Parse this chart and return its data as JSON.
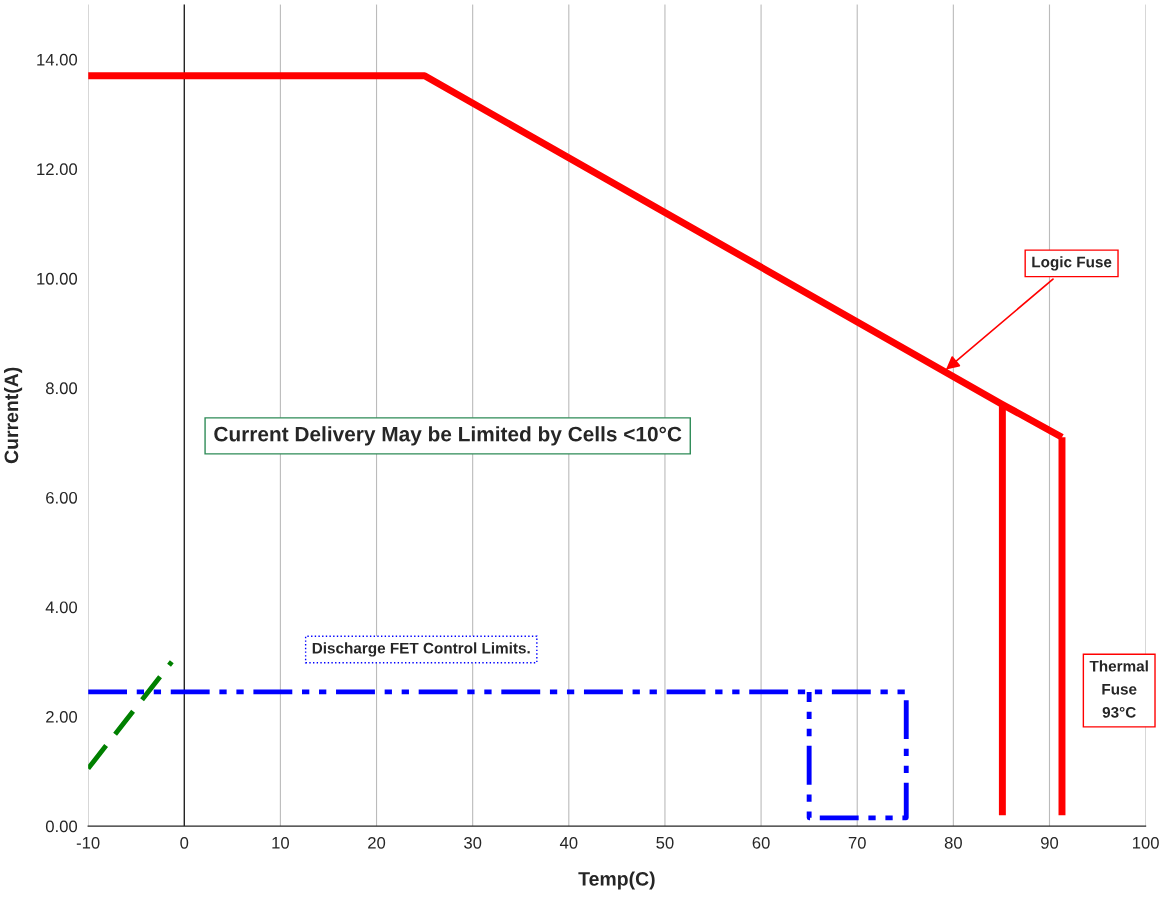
{
  "chart_data": {
    "type": "line",
    "xlabel": "Temp(C)",
    "ylabel": "Current(A)",
    "xlim": [
      -10,
      100
    ],
    "ylim": [
      0,
      15
    ],
    "xticks": [
      -10,
      0,
      10,
      20,
      30,
      40,
      50,
      60,
      70,
      80,
      90,
      100
    ],
    "yticks": [
      {
        "value": 0,
        "label": "0.00"
      },
      {
        "value": 2,
        "label": "2.00"
      },
      {
        "value": 4,
        "label": "4.00"
      },
      {
        "value": 6,
        "label": "6.00"
      },
      {
        "value": 8,
        "label": "8.00"
      },
      {
        "value": 10,
        "label": "10.00"
      },
      {
        "value": 12,
        "label": "12.00"
      },
      {
        "value": 14,
        "label": "14.00"
      }
    ],
    "grid": "x",
    "marker": "none",
    "series": [
      {
        "color": "#ff0000",
        "x": [
          -10,
          25,
          85.1,
          91.3
        ],
        "values": [
          13.7,
          13.7,
          7.7,
          7.1
        ],
        "line_style": "solid"
      },
      {
        "color": "#ff0000",
        "x": [
          85.1,
          85.1
        ],
        "values": [
          7.7,
          0.2
        ],
        "line_style": "solid"
      },
      {
        "color": "#ff0000",
        "x": [
          91.3,
          91.3
        ],
        "values": [
          7.1,
          0.2
        ],
        "line_style": "solid"
      },
      {
        "color": "#008000",
        "x": [
          -10,
          -1.3
        ],
        "values": [
          1.05,
          3.0
        ],
        "line_style": "dashed"
      },
      {
        "color": "#0000ff",
        "x": [
          -10,
          75.1,
          75.1,
          65,
          65
        ],
        "values": [
          2.45,
          2.45,
          0.15,
          0.15,
          2.45
        ],
        "line_style": "dashdotdot"
      }
    ],
    "ref_lines": [
      {
        "axis": "x",
        "value": 0,
        "color": "#000000"
      }
    ],
    "annotations": [
      {
        "text": "Logic Fuse",
        "x": 79,
        "y": 8.3
      },
      "Current Delivery May be Limited by Cells <10°C",
      "Discharge FET Control Limits.",
      "Thermal\nFuse\n93°C"
    ]
  }
}
